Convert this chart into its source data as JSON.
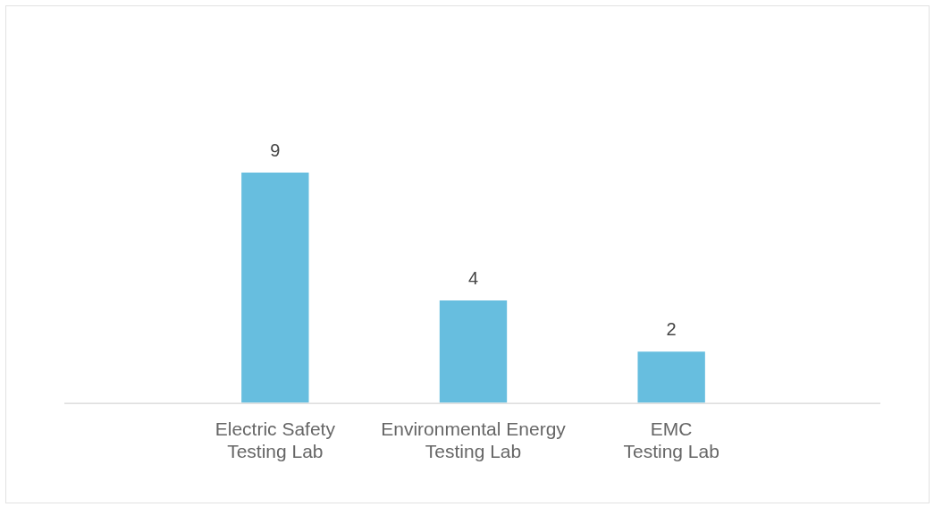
{
  "chart_data": {
    "type": "bar",
    "categories": [
      "Electric Safety Testing Lab",
      "Environmental Energy Testing Lab",
      "EMC Testing Lab"
    ],
    "values": [
      9,
      4,
      2
    ],
    "color": "#67bedf",
    "tick_labels": "x",
    "data_labels": true,
    "grid": false,
    "legend": false
  }
}
